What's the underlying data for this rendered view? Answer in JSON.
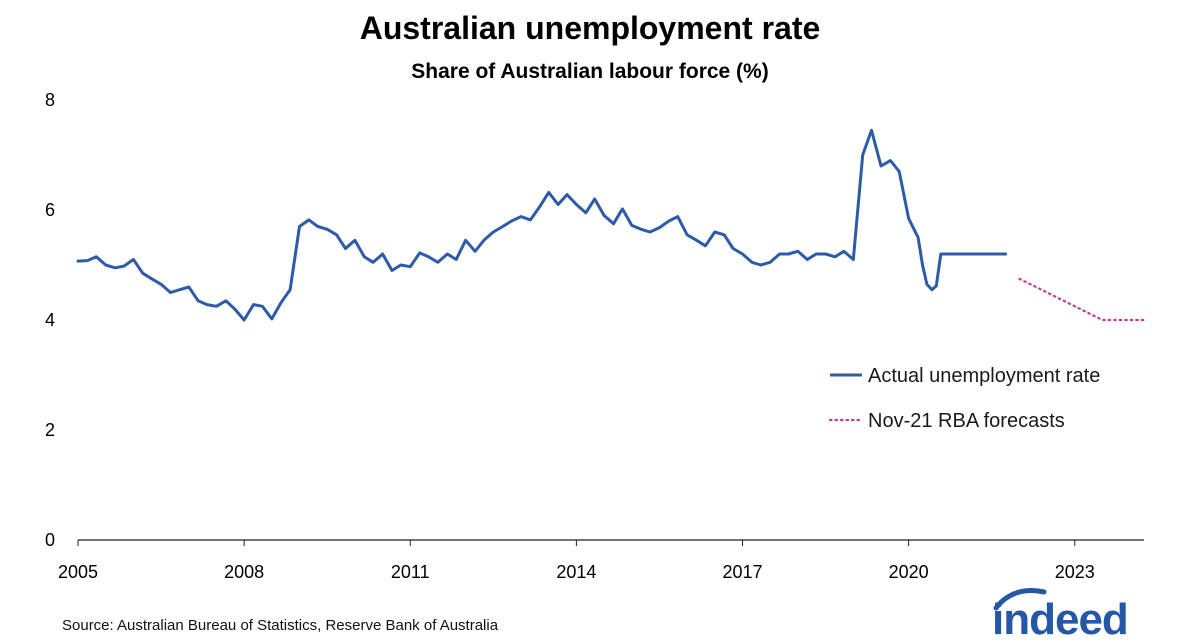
{
  "chart_data": {
    "type": "line",
    "title": "Australian unemployment rate",
    "subtitle": "Share of Australian labour force (%)",
    "xlabel": "",
    "ylabel": "",
    "xlim": [
      2005.0,
      2024.25
    ],
    "ylim": [
      0,
      8
    ],
    "x_ticks": [
      "2005",
      "2008",
      "2011",
      "2014",
      "2017",
      "2020",
      "2023"
    ],
    "y_ticks": [
      "0",
      "2",
      "4",
      "6",
      "8"
    ],
    "grid": false,
    "legend_position": "right",
    "series": [
      {
        "name": "Actual unemployment rate",
        "color": "#2d5ba8",
        "style": "solid",
        "x": [
          2005.0,
          2005.17,
          2005.33,
          2005.5,
          2005.67,
          2005.83,
          2006.0,
          2006.17,
          2006.33,
          2006.5,
          2006.67,
          2006.83,
          2007.0,
          2007.17,
          2007.33,
          2007.5,
          2007.67,
          2007.83,
          2008.0,
          2008.17,
          2008.33,
          2008.5,
          2008.67,
          2008.83,
          2009.0,
          2009.17,
          2009.33,
          2009.5,
          2009.67,
          2009.83,
          2010.0,
          2010.17,
          2010.33,
          2010.5,
          2010.67,
          2010.83,
          2011.0,
          2011.17,
          2011.33,
          2011.5,
          2011.67,
          2011.83,
          2012.0,
          2012.17,
          2012.33,
          2012.5,
          2012.67,
          2012.83,
          2013.0,
          2013.17,
          2013.33,
          2013.5,
          2013.67,
          2013.83,
          2014.0,
          2014.17,
          2014.33,
          2014.5,
          2014.67,
          2014.83,
          2015.0,
          2015.17,
          2015.33,
          2015.5,
          2015.67,
          2015.83,
          2016.0,
          2016.17,
          2016.33,
          2016.5,
          2016.67,
          2016.83,
          2017.0,
          2017.17,
          2017.33,
          2017.5,
          2017.67,
          2017.83,
          2018.0,
          2018.17,
          2018.33,
          2018.5,
          2018.67,
          2018.83,
          2019.0,
          2019.17,
          2019.33,
          2019.5,
          2019.67,
          2019.83,
          2020.0,
          2020.17,
          2020.25,
          2020.33,
          2020.42,
          2020.5,
          2020.58,
          2020.67,
          2020.83,
          2021.0,
          2021.17,
          2021.33,
          2021.5,
          2021.58,
          2021.67,
          2021.75
        ],
        "values": [
          5.07,
          5.08,
          5.15,
          5.0,
          4.95,
          4.98,
          5.1,
          4.85,
          4.75,
          4.65,
          4.5,
          4.55,
          4.6,
          4.35,
          4.28,
          4.25,
          4.35,
          4.2,
          4.0,
          4.28,
          4.25,
          4.02,
          4.32,
          4.55,
          5.7,
          5.82,
          5.7,
          5.65,
          5.55,
          5.3,
          5.45,
          5.15,
          5.05,
          5.2,
          4.9,
          5.0,
          4.97,
          5.22,
          5.15,
          5.05,
          5.2,
          5.1,
          5.45,
          5.25,
          5.45,
          5.6,
          5.7,
          5.8,
          5.88,
          5.82,
          6.05,
          6.32,
          6.1,
          6.28,
          6.1,
          5.95,
          6.2,
          5.9,
          5.75,
          6.02,
          5.72,
          5.65,
          5.6,
          5.68,
          5.8,
          5.88,
          5.55,
          5.45,
          5.35,
          5.6,
          5.55,
          5.3,
          5.2,
          5.05,
          5.0,
          5.05,
          5.2,
          5.2,
          5.25,
          5.1,
          5.2,
          5.2,
          5.15,
          5.25,
          5.1,
          7.0,
          7.45,
          6.8,
          6.9,
          6.7,
          5.85,
          5.5,
          5.0,
          4.65,
          4.55,
          4.62,
          5.2,
          5.2,
          5.2,
          5.2,
          5.2,
          5.2,
          5.2,
          5.2,
          5.2,
          5.2
        ]
      },
      {
        "name": "Nov-21 RBA forecasts",
        "color": "#c03f8e",
        "style": "dotted",
        "x": [
          2022.0,
          2022.5,
          2023.0,
          2023.5,
          2023.75,
          2024.25
        ],
        "values": [
          4.75,
          4.5,
          4.25,
          4.0,
          4.0,
          4.0
        ]
      }
    ]
  },
  "source": "Source: Australian Bureau of Statistics, Reserve Bank of Australia",
  "logo": {
    "text": "indeed",
    "color": "#2557a7"
  }
}
